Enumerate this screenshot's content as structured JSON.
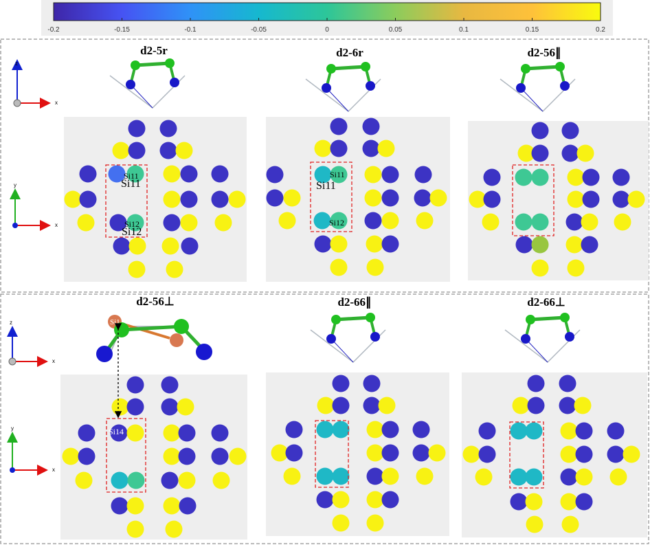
{
  "colorbar": {
    "ticks": [
      "-0.2",
      "-0.15",
      "-0.1",
      "-0.05",
      "0",
      "0.05",
      "0.1",
      "0.15",
      "0.2"
    ],
    "stops": [
      "#3e26a8",
      "#4653f3",
      "#2f92f7",
      "#16b8cf",
      "#2dc699",
      "#8ccc5c",
      "#e8b841",
      "#fec13a",
      "#f9fb0e"
    ]
  },
  "palette": {
    "blue": "#3c33c4",
    "yellow": "#f8f213",
    "teal": "#1fb8c6",
    "green": "#3ec894",
    "lightblue": "#4470f0",
    "lime": "#98c640"
  },
  "axes_labels": {
    "x": "x",
    "y": "y",
    "z": "z"
  },
  "panels": [
    {
      "title": "d2-5r",
      "sites": [
        {
          "label": "Si11",
          "large_label": "Si11"
        },
        {
          "label": "Si12",
          "large_label": "Si12"
        }
      ]
    },
    {
      "title": "d2-6r",
      "sites": [
        {
          "label": "Si11",
          "large_label": "Si11"
        },
        {
          "label": "Si12",
          "large_label": ""
        }
      ]
    },
    {
      "title": "d2-56∥",
      "sites": []
    },
    {
      "title": "d2-56⊥",
      "sites": [
        {
          "label": "Si14",
          "large_label": ""
        },
        {
          "label": "Si1",
          "large_label": ""
        }
      ]
    },
    {
      "title": "d2-66∥",
      "sites": []
    },
    {
      "title": "d2-66⊥",
      "sites": []
    }
  ]
}
